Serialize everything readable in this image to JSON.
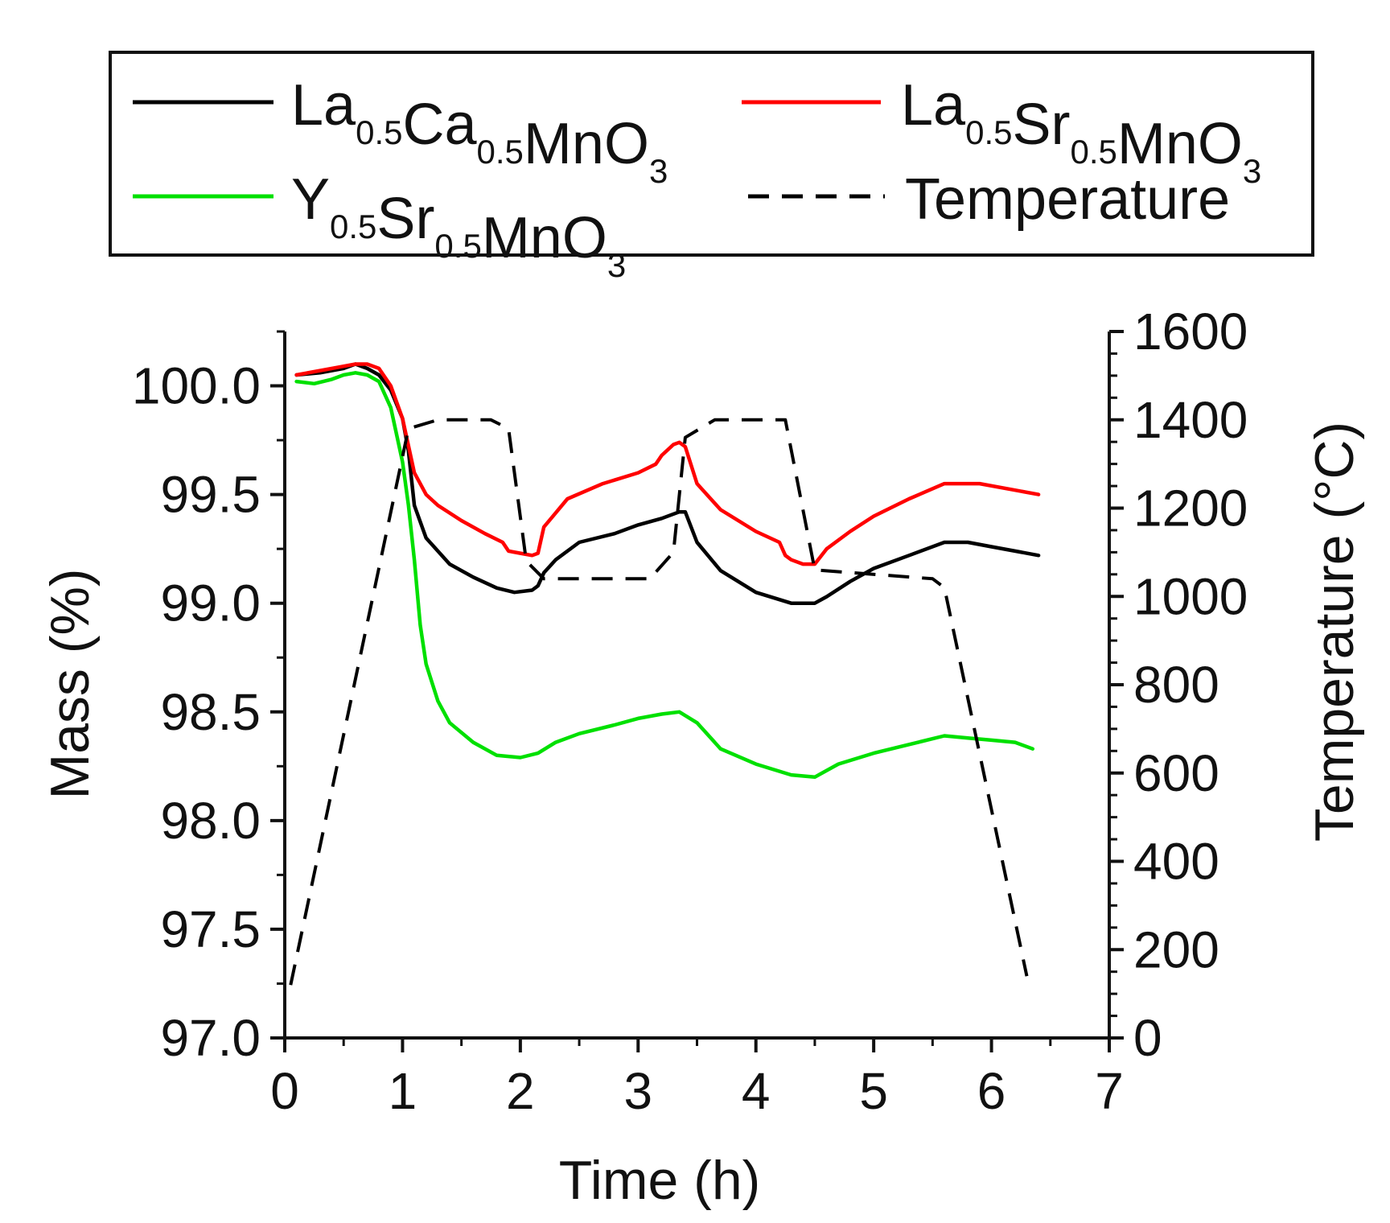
{
  "chart_data": {
    "type": "line",
    "xlabel": "Time (h)",
    "ylabel": "Mass (%)",
    "y2label": "Temperature (°C)",
    "xlim": [
      0,
      7
    ],
    "ylim": [
      97.0,
      100.25
    ],
    "y2lim": [
      0,
      1600
    ],
    "x_ticks": [
      "0",
      "1",
      "2",
      "3",
      "4",
      "5",
      "6",
      "7"
    ],
    "y_ticks": [
      "97.0",
      "97.5",
      "98.0",
      "98.5",
      "99.0",
      "99.5",
      "100.0"
    ],
    "y2_ticks": [
      "0",
      "200",
      "400",
      "600",
      "800",
      "1000",
      "1200",
      "1400",
      "1600"
    ],
    "legend": {
      "entries": [
        {
          "base": [
            "La",
            "Ca",
            "MnO"
          ],
          "subs": [
            "0.5",
            "0.5",
            "3"
          ],
          "color": "#000000",
          "style": "solid"
        },
        {
          "base": [
            "La",
            "Sr",
            "MnO"
          ],
          "subs": [
            "0.5",
            "0.5",
            "3"
          ],
          "color": "#ff0000",
          "style": "solid"
        },
        {
          "base": [
            "Y",
            "Sr",
            "MnO"
          ],
          "subs": [
            "0.5",
            "0.5",
            "3"
          ],
          "color": "#00e000",
          "style": "solid"
        },
        {
          "base": [
            "Temperature"
          ],
          "subs": [],
          "color": "#000000",
          "style": "dashed"
        }
      ]
    },
    "series": [
      {
        "name": "La0.5Ca0.5MnO3",
        "color": "#000000",
        "axis": "left",
        "style": "solid",
        "x": [
          0.1,
          0.3,
          0.5,
          0.6,
          0.7,
          0.8,
          0.9,
          1.0,
          1.05,
          1.1,
          1.2,
          1.4,
          1.6,
          1.8,
          1.95,
          2.1,
          2.15,
          2.2,
          2.3,
          2.5,
          2.8,
          3.0,
          3.2,
          3.35,
          3.4,
          3.5,
          3.7,
          4.0,
          4.3,
          4.5,
          4.6,
          4.8,
          5.0,
          5.3,
          5.6,
          5.8,
          6.0,
          6.2,
          6.4
        ],
        "values": [
          100.05,
          100.06,
          100.08,
          100.1,
          100.08,
          100.05,
          99.98,
          99.85,
          99.7,
          99.45,
          99.3,
          99.18,
          99.12,
          99.07,
          99.05,
          99.06,
          99.08,
          99.14,
          99.2,
          99.28,
          99.32,
          99.36,
          99.39,
          99.42,
          99.42,
          99.28,
          99.15,
          99.05,
          99.0,
          99.0,
          99.03,
          99.1,
          99.16,
          99.22,
          99.28,
          99.28,
          99.26,
          99.24,
          99.22
        ]
      },
      {
        "name": "La0.5Sr0.5MnO3",
        "color": "#ff0000",
        "axis": "left",
        "style": "solid",
        "x": [
          0.1,
          0.3,
          0.5,
          0.6,
          0.7,
          0.8,
          0.9,
          1.0,
          1.1,
          1.2,
          1.3,
          1.5,
          1.7,
          1.85,
          1.9,
          2.0,
          2.1,
          2.15,
          2.2,
          2.4,
          2.7,
          3.0,
          3.15,
          3.2,
          3.3,
          3.35,
          3.4,
          3.5,
          3.7,
          4.0,
          4.2,
          4.25,
          4.3,
          4.4,
          4.5,
          4.6,
          4.8,
          5.0,
          5.3,
          5.6,
          5.9,
          6.2,
          6.4
        ],
        "values": [
          100.05,
          100.07,
          100.09,
          100.1,
          100.1,
          100.08,
          100.0,
          99.85,
          99.6,
          99.5,
          99.45,
          99.38,
          99.32,
          99.28,
          99.24,
          99.23,
          99.22,
          99.23,
          99.35,
          99.48,
          99.55,
          99.6,
          99.64,
          99.68,
          99.73,
          99.74,
          99.72,
          99.55,
          99.43,
          99.33,
          99.28,
          99.22,
          99.2,
          99.18,
          99.18,
          99.25,
          99.33,
          99.4,
          99.48,
          99.55,
          99.55,
          99.52,
          99.5
        ]
      },
      {
        "name": "Y0.5Sr0.5MnO3",
        "color": "#00e000",
        "axis": "left",
        "style": "solid",
        "x": [
          0.1,
          0.25,
          0.4,
          0.5,
          0.6,
          0.7,
          0.8,
          0.9,
          1.0,
          1.05,
          1.1,
          1.15,
          1.2,
          1.3,
          1.4,
          1.6,
          1.8,
          2.0,
          2.15,
          2.3,
          2.5,
          2.8,
          3.0,
          3.2,
          3.35,
          3.5,
          3.7,
          4.0,
          4.3,
          4.5,
          4.7,
          5.0,
          5.3,
          5.6,
          5.8,
          6.0,
          6.2,
          6.35
        ],
        "values": [
          100.02,
          100.01,
          100.03,
          100.05,
          100.06,
          100.05,
          100.02,
          99.9,
          99.65,
          99.45,
          99.2,
          98.9,
          98.72,
          98.55,
          98.45,
          98.36,
          98.3,
          98.29,
          98.31,
          98.36,
          98.4,
          98.44,
          98.47,
          98.49,
          98.5,
          98.45,
          98.33,
          98.26,
          98.21,
          98.2,
          98.26,
          98.31,
          98.35,
          98.39,
          98.38,
          98.37,
          98.36,
          98.33
        ]
      },
      {
        "name": "Temperature",
        "color": "#000000",
        "axis": "right",
        "style": "dashed",
        "x": [
          0.05,
          1.05,
          1.3,
          1.75,
          1.9,
          2.05,
          2.2,
          3.1,
          3.3,
          3.4,
          3.65,
          4.25,
          4.5,
          5.5,
          5.6,
          6.3
        ],
        "values": [
          120,
          1380,
          1400,
          1400,
          1380,
          1080,
          1040,
          1040,
          1100,
          1360,
          1400,
          1400,
          1060,
          1040,
          1020,
          140
        ]
      }
    ]
  }
}
